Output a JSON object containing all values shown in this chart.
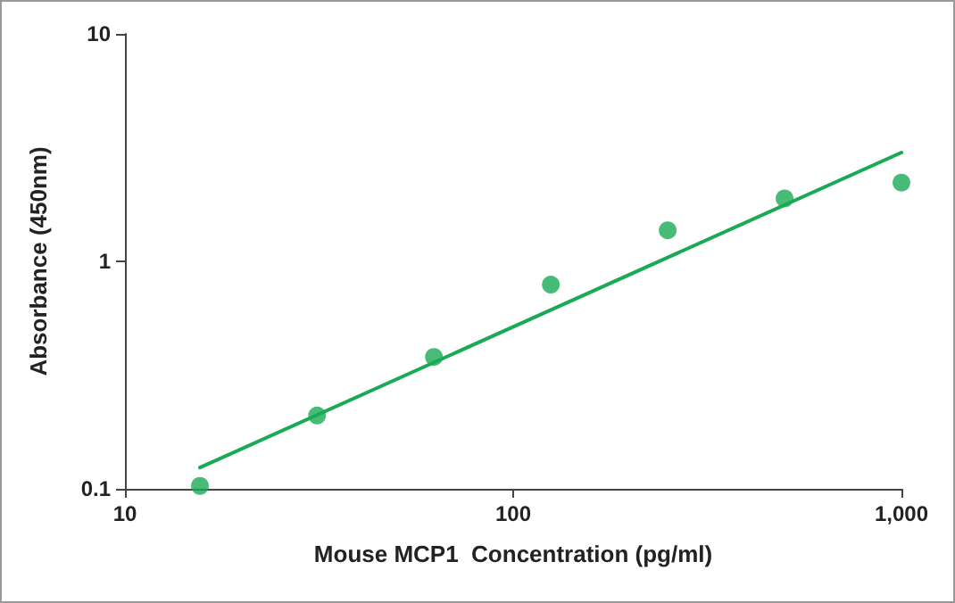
{
  "chart_data": {
    "type": "scatter",
    "xlabel": "Mouse MCP1  Concentration (pg/ml)",
    "ylabel": "Absorbance (450nm)",
    "log": "xy",
    "grid": false,
    "xlim": [
      10,
      1000
    ],
    "xticks": [
      10,
      100,
      {
        "value": 1000,
        "label": "1,000"
      }
    ],
    "ylim": [
      0.1,
      10
    ],
    "yticks": [
      0.1,
      1,
      10
    ],
    "series": [
      {
        "marker": "circle",
        "color": "#1aaa55",
        "x": [
          15.6,
          31.25,
          62.5,
          125,
          250,
          500,
          1000
        ],
        "values": [
          0.103,
          0.21,
          0.38,
          0.79,
          1.37,
          1.89,
          2.22
        ]
      },
      {
        "type": "line",
        "marker": "none",
        "line_style": "solid",
        "color": "#1aaa55",
        "x": [
          15.6,
          1000
        ],
        "values": [
          0.124,
          3.01
        ]
      }
    ]
  }
}
